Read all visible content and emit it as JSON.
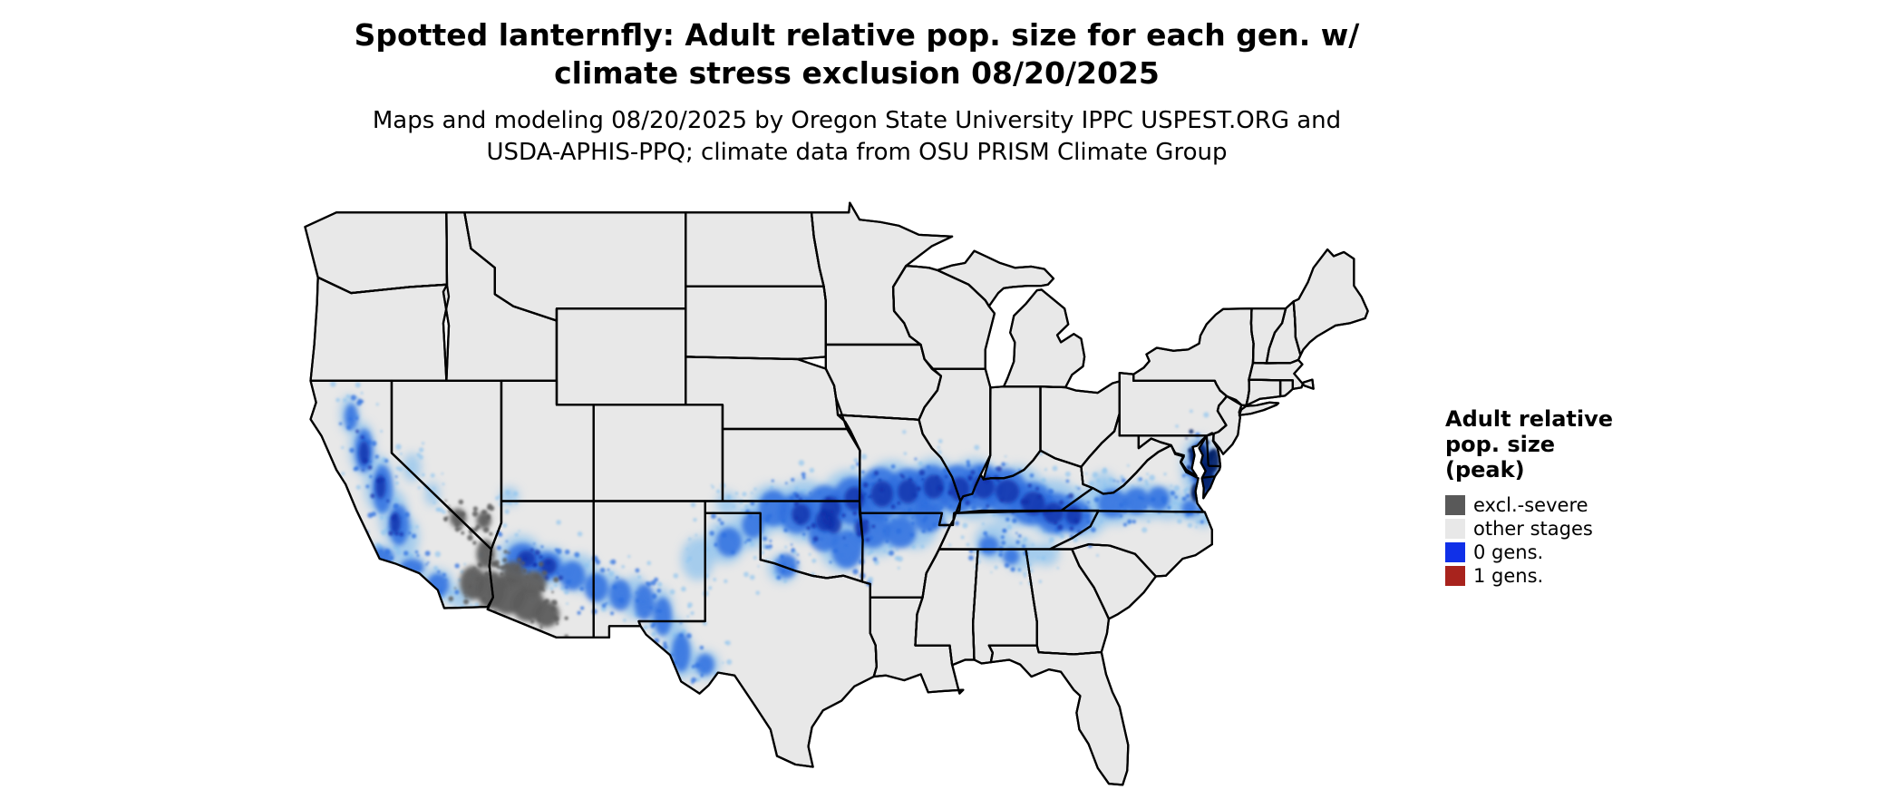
{
  "title": {
    "line1": "Spotted lanternfly: Adult relative pop. size for each gen. w/",
    "line2": "climate stress exclusion 08/20/2025"
  },
  "subtitle": {
    "line1": "Maps and modeling 08/20/2025 by Oregon State University IPPC USPEST.ORG and",
    "line2": "USDA-APHIS-PPQ; climate data from OSU PRISM Climate Group"
  },
  "legend": {
    "title_line1": "Adult relative",
    "title_line2": "pop. size",
    "title_line3": "(peak)",
    "items": [
      {
        "key": "excl_severe",
        "label": "excl.-severe",
        "color": "#595959"
      },
      {
        "key": "other_stages",
        "label": "other stages",
        "color": "#e8e8e8"
      },
      {
        "key": "zero_gens",
        "label": "0 gens.",
        "color": "#1030e8"
      },
      {
        "key": "one_gen",
        "label": "1 gens.",
        "color": "#a8231d"
      }
    ]
  },
  "map_data": {
    "type": "choropleth_raster_us",
    "base_fill": "#e8e8e8",
    "state_border_color": "#000000",
    "background": "#ffffff",
    "overlay_layers": [
      {
        "name": "zero-gens-halo",
        "legend_class": "0 gens.",
        "color": "#8fc3ee",
        "opacity": 0.75,
        "blur": 5,
        "speckle": 10,
        "spots": [
          [
            -122.3,
            40.6,
            0.5,
            0.8
          ],
          [
            -121.6,
            39.2,
            0.7,
            1.1
          ],
          [
            -120.7,
            37.7,
            0.8,
            1.2
          ],
          [
            -119.9,
            36.4,
            0.8,
            1.1
          ],
          [
            -119.3,
            35.5,
            0.8,
            0.9
          ],
          [
            -120.8,
            34.7,
            1.0,
            0.5
          ],
          [
            -119.0,
            34.3,
            0.9,
            0.5
          ],
          [
            -117.5,
            33.5,
            0.9,
            0.7
          ],
          [
            -116.3,
            33.0,
            0.6,
            0.5
          ],
          [
            -118.9,
            38.4,
            0.5,
            0.6
          ],
          [
            -117.8,
            37.3,
            0.4,
            0.5
          ],
          [
            -113.6,
            37.2,
            0.5,
            0.4
          ],
          [
            -113.0,
            34.7,
            1.2,
            0.9
          ],
          [
            -111.4,
            34.3,
            1.1,
            0.8
          ],
          [
            -109.8,
            34.0,
            1.0,
            0.8
          ],
          [
            -108.3,
            33.3,
            0.9,
            0.8
          ],
          [
            -106.8,
            33.0,
            0.8,
            0.9
          ],
          [
            -105.4,
            32.4,
            0.7,
            1.0
          ],
          [
            -104.6,
            31.3,
            0.6,
            0.9
          ],
          [
            -104.2,
            30.5,
            0.7,
            0.9
          ],
          [
            -103.0,
            30.2,
            0.8,
            0.6
          ],
          [
            -103.4,
            34.6,
            0.9,
            0.9
          ],
          [
            -101.9,
            35.3,
            1.1,
            0.9
          ],
          [
            -100.5,
            35.9,
            1.0,
            0.9
          ],
          [
            -101.8,
            36.9,
            0.6,
            0.5
          ],
          [
            -99.4,
            36.7,
            1.2,
            1.0
          ],
          [
            -98.8,
            34.2,
            0.8,
            0.6
          ],
          [
            -97.6,
            36.6,
            1.6,
            1.3
          ],
          [
            -95.2,
            36.9,
            1.6,
            1.4
          ],
          [
            -92.9,
            37.2,
            1.7,
            1.5
          ],
          [
            -90.6,
            37.4,
            1.6,
            1.4
          ],
          [
            -88.4,
            37.5,
            1.6,
            1.3
          ],
          [
            -86.1,
            37.2,
            1.7,
            1.3
          ],
          [
            -84.1,
            36.7,
            1.6,
            1.2
          ],
          [
            -82.4,
            36.5,
            1.3,
            1.0
          ],
          [
            -80.7,
            36.9,
            1.3,
            0.9
          ],
          [
            -79.1,
            37.0,
            1.1,
            0.8
          ],
          [
            -77.9,
            36.9,
            0.9,
            0.7
          ],
          [
            -95.6,
            35.1,
            1.2,
            1.0
          ],
          [
            -93.6,
            35.7,
            1.3,
            1.0
          ],
          [
            -91.6,
            35.9,
            1.2,
            0.9
          ],
          [
            -87.4,
            35.3,
            1.0,
            0.8
          ],
          [
            -85.9,
            34.8,
            0.9,
            0.7
          ],
          [
            -84.5,
            34.8,
            0.7,
            0.5
          ],
          [
            -76.2,
            38.4,
            1.0,
            1.3
          ],
          [
            -76.8,
            36.7,
            0.7,
            0.5
          ],
          [
            -76.0,
            36.3,
            0.5,
            0.4
          ],
          [
            -81.4,
            37.7,
            0.7,
            0.5
          ]
        ]
      },
      {
        "name": "zero-gens-mid",
        "legend_class": "0 gens.",
        "color": "#2e6fdf",
        "opacity": 0.85,
        "blur": 3,
        "speckle": 8,
        "spots": [
          [
            -122.2,
            40.5,
            0.35,
            0.55
          ],
          [
            -121.5,
            39.1,
            0.5,
            0.9
          ],
          [
            -120.5,
            37.5,
            0.55,
            1.0
          ],
          [
            -119.6,
            36.0,
            0.55,
            0.85
          ],
          [
            -120.6,
            34.7,
            0.7,
            0.35
          ],
          [
            -118.9,
            34.25,
            0.65,
            0.35
          ],
          [
            -117.5,
            33.5,
            0.6,
            0.5
          ],
          [
            -112.9,
            34.6,
            0.9,
            0.65
          ],
          [
            -111.6,
            34.3,
            0.85,
            0.6
          ],
          [
            -110.2,
            33.9,
            0.7,
            0.6
          ],
          [
            -108.9,
            33.4,
            0.65,
            0.6
          ],
          [
            -107.6,
            33.1,
            0.6,
            0.65
          ],
          [
            -106.3,
            32.8,
            0.55,
            0.75
          ],
          [
            -105.3,
            32.2,
            0.5,
            0.8
          ],
          [
            -104.3,
            30.7,
            0.5,
            0.8
          ],
          [
            -103.0,
            30.2,
            0.5,
            0.45
          ],
          [
            -99.3,
            36.7,
            0.8,
            0.75
          ],
          [
            -98.0,
            36.5,
            1.0,
            0.85
          ],
          [
            -96.5,
            36.7,
            1.1,
            0.95
          ],
          [
            -95.0,
            37.0,
            1.1,
            1.0
          ],
          [
            -93.5,
            37.3,
            1.2,
            1.1
          ],
          [
            -92.0,
            37.35,
            1.2,
            1.0
          ],
          [
            -90.7,
            37.5,
            1.1,
            1.0
          ],
          [
            -89.3,
            37.5,
            1.1,
            1.0
          ],
          [
            -88.0,
            37.6,
            1.1,
            0.95
          ],
          [
            -86.7,
            37.4,
            1.2,
            0.95
          ],
          [
            -85.3,
            36.9,
            1.2,
            0.9
          ],
          [
            -84.0,
            36.5,
            1.1,
            0.85
          ],
          [
            -82.9,
            36.35,
            0.9,
            0.7
          ],
          [
            -95.3,
            35.0,
            0.85,
            0.8
          ],
          [
            -96.6,
            35.6,
            0.8,
            0.7
          ],
          [
            -93.9,
            35.8,
            0.9,
            0.75
          ],
          [
            -92.4,
            35.7,
            0.85,
            0.65
          ],
          [
            -90.9,
            36.3,
            0.8,
            0.6
          ],
          [
            -101.7,
            35.3,
            0.7,
            0.6
          ],
          [
            -100.4,
            36.0,
            0.6,
            0.55
          ],
          [
            -98.6,
            34.3,
            0.6,
            0.5
          ],
          [
            -87.6,
            35.15,
            0.55,
            0.4
          ],
          [
            -86.4,
            34.7,
            0.45,
            0.35
          ],
          [
            -80.9,
            36.9,
            0.8,
            0.6
          ],
          [
            -79.6,
            37.0,
            0.7,
            0.55
          ],
          [
            -78.4,
            37.1,
            0.6,
            0.5
          ],
          [
            -76.7,
            36.7,
            0.45,
            0.35
          ],
          [
            -76.15,
            38.5,
            0.6,
            1.0
          ],
          [
            -75.7,
            37.9,
            0.45,
            0.7
          ]
        ]
      },
      {
        "name": "zero-gens-core",
        "legend_class": "0 gens.",
        "color": "#0b2faa",
        "opacity": 0.8,
        "blur": 2,
        "speckle": 5,
        "spots": [
          [
            -97.8,
            36.45,
            0.5,
            0.45
          ],
          [
            -96.5,
            36.2,
            0.5,
            0.45
          ],
          [
            -96.2,
            36.7,
            0.55,
            0.5
          ],
          [
            -94.9,
            37.1,
            0.55,
            0.5
          ],
          [
            -93.4,
            37.3,
            0.6,
            0.55
          ],
          [
            -92.0,
            37.4,
            0.55,
            0.5
          ],
          [
            -90.6,
            37.6,
            0.55,
            0.5
          ],
          [
            -89.2,
            37.5,
            0.55,
            0.5
          ],
          [
            -87.9,
            37.6,
            0.6,
            0.5
          ],
          [
            -86.6,
            37.4,
            0.65,
            0.5
          ],
          [
            -85.2,
            36.9,
            0.65,
            0.5
          ],
          [
            -84.1,
            36.5,
            0.55,
            0.45
          ],
          [
            -83.0,
            36.4,
            0.45,
            0.4
          ],
          [
            -121.5,
            39.0,
            0.28,
            0.5
          ],
          [
            -120.6,
            37.6,
            0.28,
            0.5
          ],
          [
            -119.8,
            36.1,
            0.28,
            0.45
          ],
          [
            -112.7,
            34.6,
            0.5,
            0.35
          ],
          [
            -111.5,
            34.3,
            0.45,
            0.35
          ],
          [
            -96.0,
            36.0,
            0.4,
            0.35
          ],
          [
            -94.5,
            35.9,
            0.4,
            0.35
          ]
        ]
      },
      {
        "name": "chesapeake-dark",
        "legend_class": "0 gens.",
        "color": "#071f66",
        "opacity": 0.9,
        "blur": 1.5,
        "speckle": 4,
        "spots": [
          [
            -76.15,
            38.6,
            0.45,
            0.8
          ],
          [
            -75.8,
            38.0,
            0.38,
            0.6
          ],
          [
            -76.35,
            37.35,
            0.3,
            0.4
          ],
          [
            -75.95,
            37.05,
            0.26,
            0.35
          ],
          [
            -75.4,
            38.7,
            0.3,
            0.5
          ],
          [
            -76.45,
            38.9,
            0.28,
            0.4
          ]
        ]
      },
      {
        "name": "excl-severe",
        "legend_class": "excl.-severe",
        "color": "#5c5c5c",
        "opacity": 0.95,
        "blur": 2.5,
        "speckle": 12,
        "spots": [
          [
            -116.4,
            36.3,
            0.45,
            0.4
          ],
          [
            -115.0,
            36.2,
            0.4,
            0.35
          ],
          [
            -114.9,
            34.8,
            0.5,
            0.6
          ],
          [
            -115.6,
            33.6,
            0.7,
            0.7
          ],
          [
            -114.6,
            33.3,
            0.8,
            0.8
          ],
          [
            -113.7,
            33.1,
            1.0,
            0.8
          ],
          [
            -112.6,
            32.7,
            0.9,
            0.7
          ],
          [
            -111.6,
            32.3,
            0.7,
            0.55
          ],
          [
            -112.3,
            33.6,
            0.7,
            0.5
          ],
          [
            -113.4,
            34.0,
            0.6,
            0.5
          ]
        ]
      }
    ]
  }
}
